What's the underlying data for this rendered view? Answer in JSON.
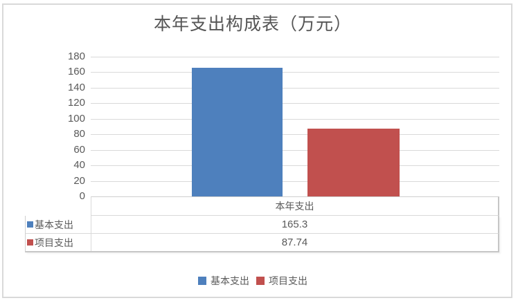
{
  "chart_data": {
    "type": "bar",
    "title": "本年支出构成表（万元）",
    "categories": [
      "本年支出"
    ],
    "series": [
      {
        "name": "基本支出",
        "color": "#4E80BD",
        "values": [
          165.3
        ]
      },
      {
        "name": "项目支出",
        "color": "#C1504E",
        "values": [
          87.74
        ]
      }
    ],
    "ylim": [
      0,
      180
    ],
    "ytick_step": 20,
    "yticks": [
      "180",
      "160",
      "140",
      "120",
      "100",
      "80",
      "60",
      "40",
      "20",
      "0"
    ],
    "grid": true,
    "legend_position": "bottom",
    "data_table": {
      "header": "本年支出",
      "rows": [
        {
          "name": "基本支出",
          "value": "165.3"
        },
        {
          "name": "项目支出",
          "value": "87.74"
        }
      ]
    }
  },
  "colors": {
    "grid": "#D9D9D9",
    "frame_border": "#D9D9D9",
    "text": "#595959"
  }
}
